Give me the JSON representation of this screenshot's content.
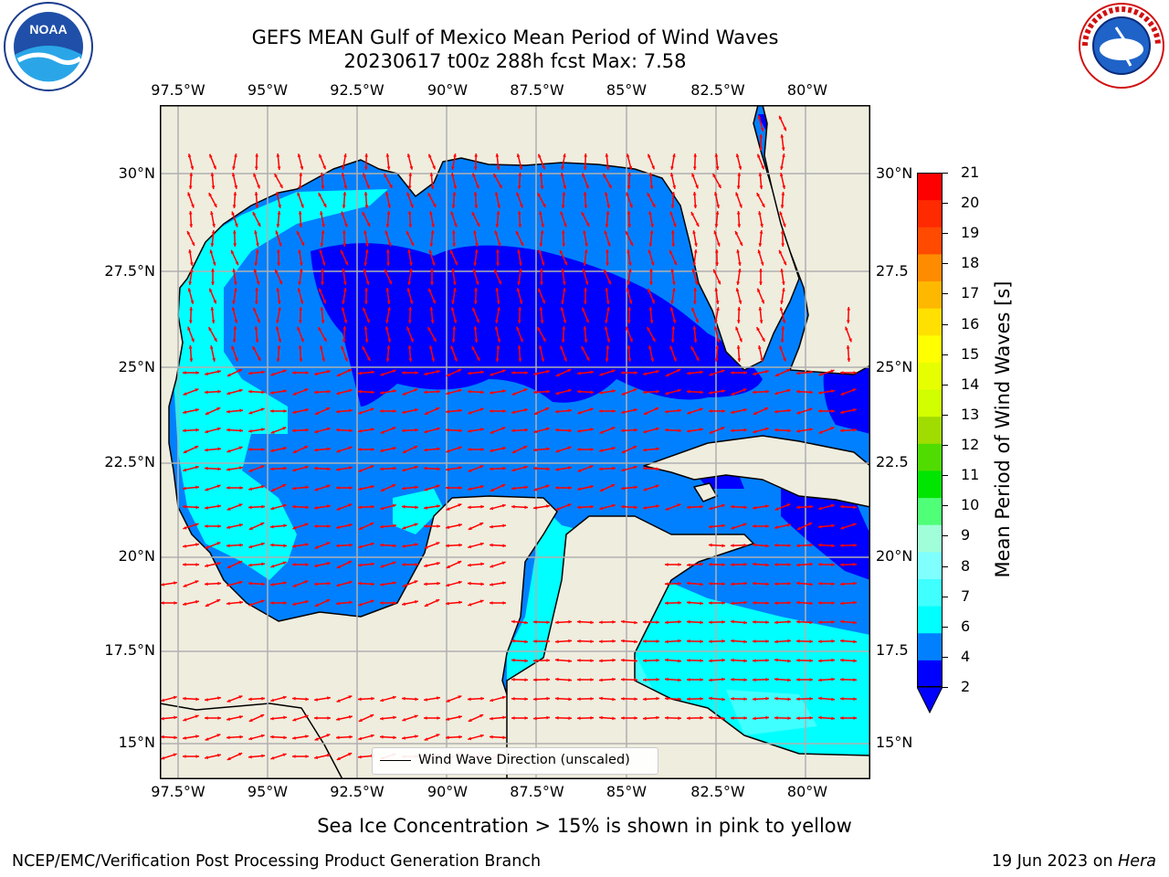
{
  "title": {
    "line1": "GEFS MEAN Gulf of Mexico Mean Period of Wind Waves",
    "line2": "20230617 t00z 288h fcst   Max: 7.58"
  },
  "map": {
    "lon_labels": [
      "97.5°W",
      "95°W",
      "92.5°W",
      "90°W",
      "87.5°W",
      "85°W",
      "82.5°W",
      "80°W"
    ],
    "lat_labels": [
      "30°N",
      "27.5°N",
      "25°N",
      "22.5°N",
      "20°N",
      "17.5°N",
      "15°N"
    ],
    "lat_labels_right": [
      "30°N",
      "27.5",
      "25°N",
      "22.5",
      "20°N",
      "17.5",
      "15°N"
    ],
    "lon_range": [
      -98,
      -78.2
    ],
    "lat_range": [
      14,
      31.7
    ],
    "colors": {
      "land": "#efedde",
      "coast": "#000000",
      "grid": "#b0b0b0",
      "arrow": "#ff0000"
    }
  },
  "legend": {
    "label": "Wind Wave Direction (unscaled)"
  },
  "colorbar": {
    "label": "Mean Period of Wind Waves [s]",
    "ticks": [
      "2",
      "4",
      "6",
      "7",
      "8",
      "9",
      "10",
      "11",
      "12",
      "13",
      "14",
      "15",
      "16",
      "17",
      "18",
      "19",
      "20",
      "21"
    ],
    "colors": [
      "#0000ff",
      "#0080ff",
      "#00ffff",
      "#40ffff",
      "#80ffff",
      "#a0ffd8",
      "#50ff78",
      "#00e600",
      "#50dc00",
      "#a0dc00",
      "#d2ff00",
      "#e6ff00",
      "#ffff00",
      "#ffe000",
      "#ffb800",
      "#ff8c00",
      "#ff4a00",
      "#ff2a00",
      "#ff0000"
    ]
  },
  "footnote": "Sea Ice Concentration > 15% is shown in pink to yellow",
  "credit": "NCEP/EMC/Verification Post Processing Product Generation Branch",
  "run_info": {
    "date": "19 Jun 2023 on",
    "machine": "Hera"
  },
  "logos": {
    "left": "NOAA",
    "right": "NATIONAL WEATHER SERVICE"
  }
}
